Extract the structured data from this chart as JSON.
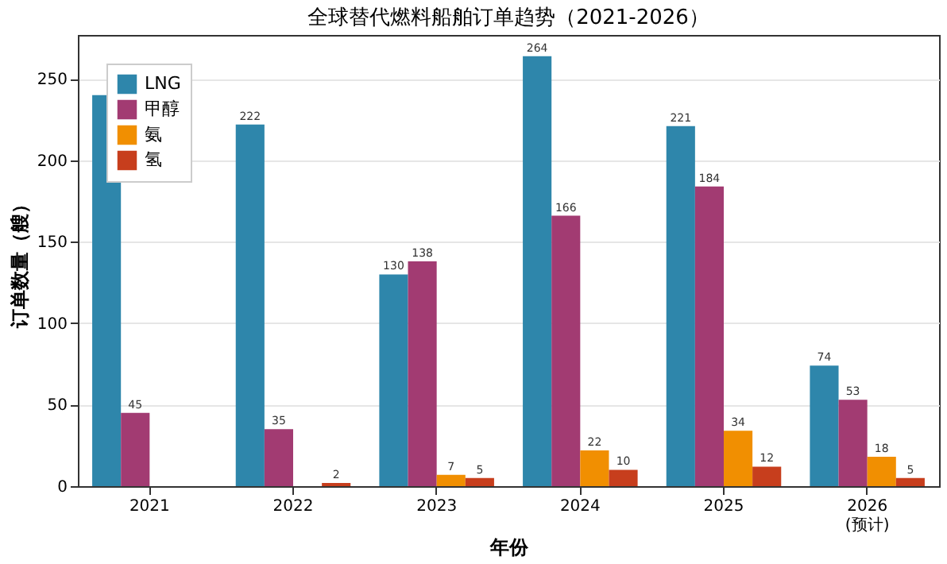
{
  "chart_data": {
    "type": "bar",
    "title": "全球替代燃料船舶订单趋势（2021-2026）",
    "xlabel": "年份",
    "ylabel": "订单数量（艘）",
    "categories": [
      "2021",
      "2022",
      "2023",
      "2024",
      "2025",
      "2026\n(预计)"
    ],
    "series": [
      {
        "name": "LNG",
        "color": "#2e86ab",
        "values": [
          240,
          222,
          130,
          264,
          221,
          74
        ],
        "value_labels": [
          null,
          "222",
          "130",
          "264",
          "221",
          "74"
        ]
      },
      {
        "name": "甲醇",
        "color": "#a23b72",
        "values": [
          45,
          35,
          138,
          166,
          184,
          53
        ],
        "value_labels": [
          "45",
          "35",
          "138",
          "166",
          "184",
          "53"
        ]
      },
      {
        "name": "氨",
        "color": "#f18f01",
        "values": [
          0,
          0,
          7,
          22,
          34,
          18
        ],
        "value_labels": [
          null,
          null,
          "7",
          "22",
          "34",
          "18"
        ]
      },
      {
        "name": "氢",
        "color": "#c73e1d",
        "values": [
          0,
          2,
          5,
          10,
          12,
          5
        ],
        "value_labels": [
          null,
          "2",
          "5",
          "10",
          "12",
          "5"
        ]
      }
    ],
    "ylim": [
      0,
      277
    ],
    "yticks": [
      0,
      50,
      100,
      150,
      200,
      250
    ],
    "grid": "y",
    "legend": "top left"
  }
}
